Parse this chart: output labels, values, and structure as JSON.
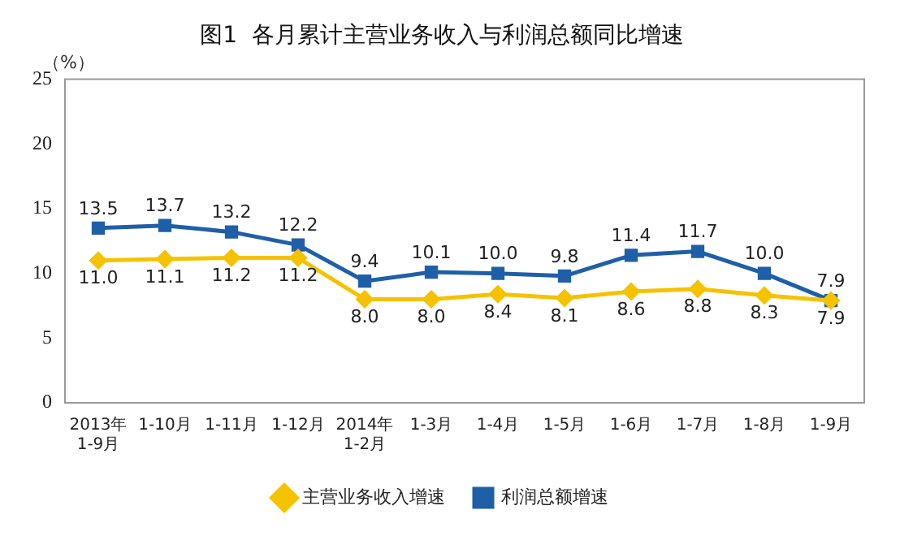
{
  "chart_data": {
    "type": "line",
    "title": "图1  各月累计主营业务收入与利润总额同比增速",
    "ylabel": "（%）",
    "categories": [
      "2013年\n1-9月",
      "1-10月",
      "1-11月",
      "1-12月",
      "2014年\n1-2月",
      "1-3月",
      "1-4月",
      "1-5月",
      "1-6月",
      "1-7月",
      "1-8月",
      "1-9月"
    ],
    "series": [
      {
        "name": "主营业务收入增速",
        "color": "#f5c200",
        "marker": "diamond",
        "values": [
          11.0,
          11.1,
          11.2,
          11.2,
          8.0,
          8.0,
          8.4,
          8.1,
          8.6,
          8.8,
          8.3,
          7.9
        ],
        "value_labels": [
          "11.0",
          "11.1",
          "11.2",
          "11.2",
          "8.0",
          "8.0",
          "8.4",
          "8.1",
          "8.6",
          "8.8",
          "8.3",
          "7.9"
        ]
      },
      {
        "name": "利润总额增速",
        "color": "#1f5fa8",
        "marker": "square",
        "values": [
          13.5,
          13.7,
          13.2,
          12.2,
          9.4,
          10.1,
          10.0,
          9.8,
          11.4,
          11.7,
          10.0,
          7.9
        ],
        "value_labels": [
          "13.5",
          "13.7",
          "13.2",
          "12.2",
          "9.4",
          "10.1",
          "10.0",
          "9.8",
          "11.4",
          "11.7",
          "10.0",
          "7.9"
        ]
      }
    ],
    "ylim": [
      0,
      25
    ],
    "yticks": [
      0,
      5,
      10,
      15,
      20,
      25
    ],
    "grid": false,
    "legend": "bottom"
  }
}
